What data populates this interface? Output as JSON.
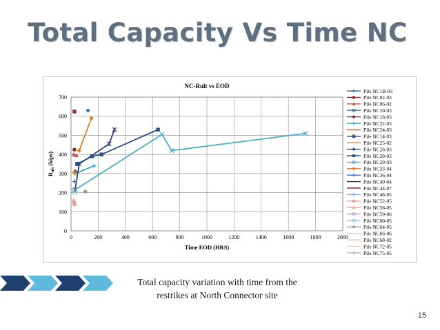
{
  "slide": {
    "title": "Total Capacity Vs Time NC",
    "caption_line1": "Total capacity variation with time from the",
    "caption_line2": "restrikes at North Connector site",
    "page_number": "15",
    "accent_dark": "#1f3f6f",
    "accent_light": "#5fb9dc"
  },
  "chart_data": {
    "type": "scatter",
    "title": "NC-Rult vs EOD",
    "xlabel": "Time EOD (HRS)",
    "ylabel_main": "R",
    "ylabel_sub": "ult",
    "ylabel_suffix": " (kips)",
    "xlim": [
      0,
      2000
    ],
    "ylim": [
      0,
      700
    ],
    "xticks": [
      0,
      200,
      400,
      600,
      800,
      1000,
      1200,
      1400,
      1600,
      1800,
      2000
    ],
    "yticks": [
      0,
      100,
      200,
      300,
      400,
      500,
      600,
      700
    ],
    "grid": true,
    "legend_position": "right",
    "series": [
      {
        "name": "Pile NC1B-03",
        "color": "#2e75b6",
        "marker": "diamond",
        "x": [
          125
        ],
        "y": [
          630
        ]
      },
      {
        "name": "Pile NC02-03",
        "color": "#a6292b",
        "marker": "square",
        "x": [
          25
        ],
        "y": [
          625
        ]
      },
      {
        "name": "Pile NC06-02",
        "color": "#c0504d",
        "marker": "triangle",
        "x": [
          20,
          40
        ],
        "y": [
          400,
          395
        ]
      },
      {
        "name": "Pile NC10-03",
        "color": "#4a6b8a",
        "marker": "x",
        "x": [],
        "y": []
      },
      {
        "name": "Pile NC18-03",
        "color": "#7b2c2c",
        "marker": "circle",
        "x": [
          25
        ],
        "y": [
          425
        ]
      },
      {
        "name": "Pile NC22-03",
        "color": "#35a7b8",
        "marker": "plus",
        "x": [
          30,
          170
        ],
        "y": [
          300,
          340
        ]
      },
      {
        "name": "Pile NC24-03",
        "color": "#c45a2a",
        "marker": "line",
        "x": [],
        "y": []
      },
      {
        "name": "Pile NC14-03",
        "color": "#2f3c7a",
        "marker": "star",
        "x": [
          30,
          60,
          280,
          320
        ],
        "y": [
          215,
          350,
          455,
          530
        ]
      },
      {
        "name": "Pile NC25-02",
        "color": "#e07b22",
        "marker": "line",
        "x": [
          60,
          150
        ],
        "y": [
          420,
          590
        ]
      },
      {
        "name": "Pile NC26-03",
        "color": "#1f3f6f",
        "marker": "diamond",
        "x": [
          30
        ],
        "y": [
          310
        ]
      },
      {
        "name": "Pile NC28-03",
        "color": "#2a4e86",
        "marker": "square",
        "x": [
          45,
          155,
          225,
          640
        ],
        "y": [
          350,
          390,
          400,
          530
        ]
      },
      {
        "name": "Pile NC29-03",
        "color": "#4bacc6",
        "marker": "x",
        "x": [
          20,
          670,
          740,
          1725
        ],
        "y": [
          210,
          505,
          420,
          510
        ]
      },
      {
        "name": "Pile NC33-04",
        "color": "#e8732a",
        "marker": "circle",
        "x": [
          25
        ],
        "y": [
          305
        ]
      },
      {
        "name": "Pile NC36-04",
        "color": "#3b6bb5",
        "marker": "plus",
        "x": [
          25
        ],
        "y": [
          258
        ]
      },
      {
        "name": "Pile NC40-04",
        "color": "#22366a",
        "marker": "line",
        "x": [],
        "y": []
      },
      {
        "name": "Pile NC44-07",
        "color": "#7a2a3a",
        "marker": "line",
        "x": [],
        "y": []
      },
      {
        "name": "Pile NC48-05",
        "color": "#8db4e2",
        "marker": "diamond",
        "x": [
          20
        ],
        "y": [
          150
        ]
      },
      {
        "name": "Pile NC52-05",
        "color": "#e6a0a0",
        "marker": "square",
        "x": [
          25
        ],
        "y": [
          140
        ]
      },
      {
        "name": "Pile NC56-05",
        "color": "#f2a48a",
        "marker": "triangle",
        "x": [
          20
        ],
        "y": [
          160
        ]
      },
      {
        "name": "Pile NC59-06",
        "color": "#b0a0c8",
        "marker": "x",
        "x": [],
        "y": []
      },
      {
        "name": "Pile NC60-05",
        "color": "#9ac8d8",
        "marker": "x",
        "x": [
          30
        ],
        "y": [
          200
        ]
      },
      {
        "name": "Pile NC64-05",
        "color": "#a89090",
        "marker": "circle",
        "x": [
          105
        ],
        "y": [
          205
        ]
      },
      {
        "name": "Pile NC66-06",
        "color": "#c8c8dc",
        "marker": "line",
        "x": [],
        "y": []
      },
      {
        "name": "Pile NC68-02",
        "color": "#f4b8b8",
        "marker": "line",
        "x": [],
        "y": []
      },
      {
        "name": "Pile NC72-05",
        "color": "#f6c6a0",
        "marker": "line",
        "x": [],
        "y": []
      },
      {
        "name": "Pile NC75-05",
        "color": "#b8b8d8",
        "marker": "diamond",
        "x": [],
        "y": []
      }
    ]
  }
}
